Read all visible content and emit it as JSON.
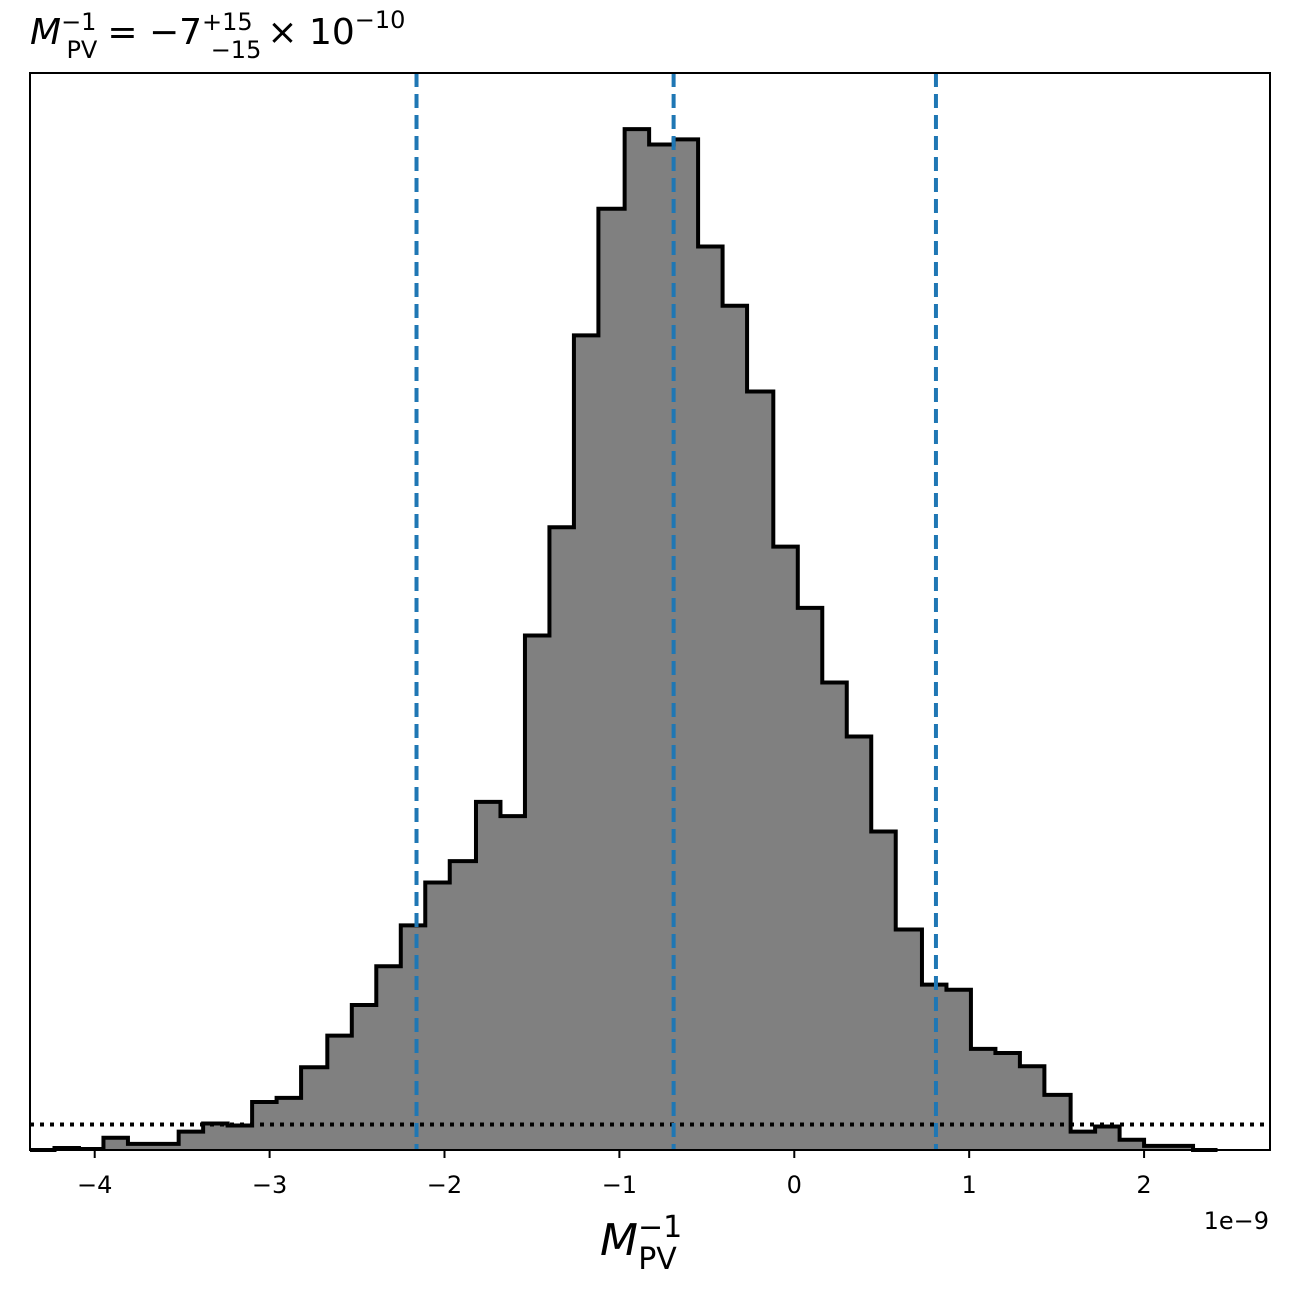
{
  "chart_data": {
    "type": "histogram",
    "title": {
      "symbol": "M",
      "subscript": "PV",
      "superscript": "−1",
      "equals": "= −7",
      "upper_err": "+15",
      "lower_err": "−15",
      "multiplier": "× 10",
      "exponent": "−10"
    },
    "xlabel": {
      "symbol": "M",
      "subscript": "PV",
      "superscript": "−1"
    },
    "x_offset_label": "1e−9",
    "xlim": [
      -4.37,
      2.72
    ],
    "ylim": [
      0,
      1.055
    ],
    "xticks": [
      -4,
      -3,
      -2,
      -1,
      0,
      1,
      2
    ],
    "xtick_labels": [
      "−4",
      "−3",
      "−2",
      "−1",
      "0",
      "1",
      "2"
    ],
    "bin_edges": [
      -4.37,
      -4.23,
      -4.09,
      -3.95,
      -3.81,
      -3.67,
      -3.52,
      -3.38,
      -3.24,
      -3.1,
      -2.96,
      -2.82,
      -2.67,
      -2.53,
      -2.39,
      -2.25,
      -2.11,
      -1.97,
      -1.82,
      -1.68,
      -1.54,
      -1.4,
      -1.26,
      -1.12,
      -0.97,
      -0.83,
      -0.69,
      -0.55,
      -0.41,
      -0.27,
      -0.12,
      0.02,
      0.16,
      0.3,
      0.44,
      0.58,
      0.73,
      0.87,
      1.01,
      1.15,
      1.29,
      1.43,
      1.58,
      1.72,
      1.86,
      2.0,
      2.14,
      2.28,
      2.42
    ],
    "bin_values": [
      0.0,
      0.002,
      0.001,
      0.012,
      0.006,
      0.006,
      0.018,
      0.026,
      0.024,
      0.047,
      0.051,
      0.081,
      0.112,
      0.142,
      0.18,
      0.22,
      0.262,
      0.283,
      0.341,
      0.327,
      0.504,
      0.61,
      0.798,
      0.922,
      1.0,
      0.985,
      0.99,
      0.885,
      0.827,
      0.743,
      0.591,
      0.531,
      0.458,
      0.405,
      0.312,
      0.216,
      0.162,
      0.157,
      0.099,
      0.095,
      0.082,
      0.054,
      0.018,
      0.023,
      0.01,
      0.004,
      0.004,
      0.0
    ],
    "median": -0.69,
    "lower_bound": -2.16,
    "upper_bound": 0.81,
    "dotted_level": 0.025,
    "fill_color": "#808080",
    "edge_color": "#000000",
    "line_color": "#1f77b4"
  }
}
